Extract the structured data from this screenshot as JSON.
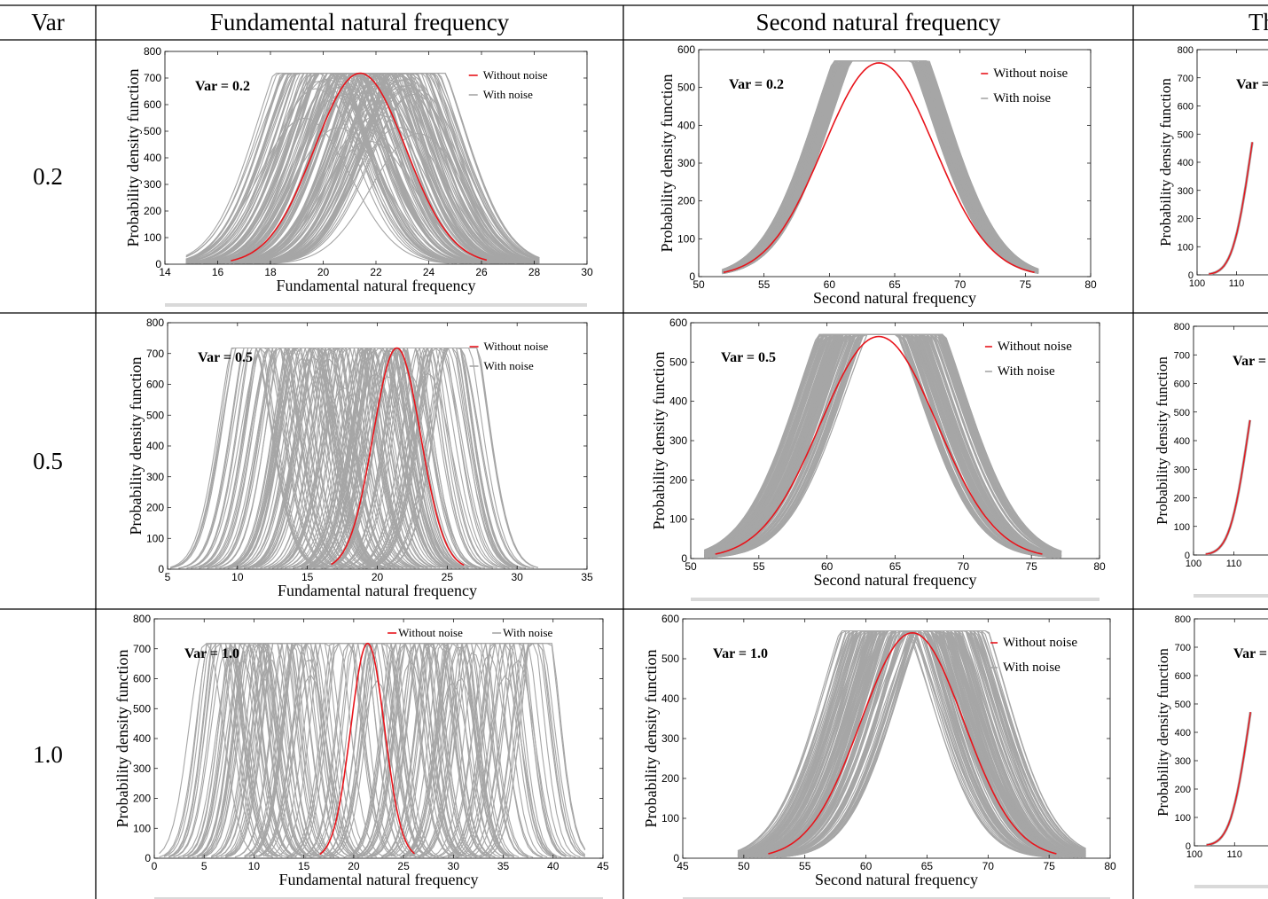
{
  "table": {
    "col_headers": [
      "Var",
      "Fundamental natural frequency",
      "Second natural frequency",
      "Th"
    ],
    "row_labels": [
      "0.2",
      "0.5",
      "1.0"
    ]
  },
  "colors": {
    "without_noise": "#e8141b",
    "with_noise": "#a6a6a6",
    "border": "#000000",
    "watermark": "#d9d9d9"
  },
  "chart_data": [
    {
      "id": "f1-0.2",
      "type": "line",
      "annotation": "Var = 0.2",
      "xlabel": "Fundamental natural frequency",
      "ylabel": "Probability density function",
      "xlim": [
        14,
        30
      ],
      "ylim": [
        0,
        800
      ],
      "xticks": [
        14,
        16,
        18,
        20,
        22,
        24,
        26,
        28,
        30
      ],
      "yticks": [
        0,
        100,
        200,
        300,
        400,
        500,
        600,
        700,
        800
      ],
      "series": [
        {
          "name": "Without noise",
          "peak_x": 21.4,
          "peak_y": 718,
          "x_range": [
            16.5,
            26.2
          ]
        },
        {
          "name": "With noise",
          "x_range": [
            14.8,
            28.2
          ],
          "peak_y": 718,
          "center_range": [
            19.2,
            23.6
          ],
          "min_peak_y": 300
        }
      ]
    },
    {
      "id": "f2-0.2",
      "type": "line",
      "annotation": "Var = 0.2",
      "xlabel": "Second natural frequency",
      "ylabel": "Probability density function",
      "xlim": [
        50,
        80
      ],
      "ylim": [
        0,
        600
      ],
      "xticks": [
        50,
        55,
        60,
        65,
        70,
        75,
        80
      ],
      "yticks": [
        0,
        100,
        200,
        300,
        400,
        500,
        600
      ],
      "series": [
        {
          "name": "Without noise",
          "peak_x": 63.8,
          "peak_y": 565,
          "x_range": [
            51.9,
            75.7
          ]
        },
        {
          "name": "With noise",
          "x_range": [
            51.8,
            76.0
          ],
          "peak_y": 570,
          "center_range": [
            63.3,
            64.6
          ],
          "min_peak_y": 545
        }
      ]
    },
    {
      "id": "f3-0.2",
      "type": "line",
      "annotation": "Var =",
      "ylabel": "Probability density function",
      "xlim": [
        100,
        140
      ],
      "ylim": [
        0,
        800
      ],
      "xticks": [
        100,
        110
      ],
      "yticks": [
        0,
        100,
        200,
        300,
        400,
        500,
        600,
        700,
        800
      ]
    },
    {
      "id": "f1-0.5",
      "type": "line",
      "annotation": "Var = 0.5",
      "xlabel": "Fundamental natural frequency",
      "ylabel": "Probability density function",
      "xlim": [
        5,
        35
      ],
      "ylim": [
        0,
        800
      ],
      "xticks": [
        5,
        10,
        15,
        20,
        25,
        30,
        35
      ],
      "yticks": [
        0,
        100,
        200,
        300,
        400,
        500,
        600,
        700,
        800
      ],
      "series": [
        {
          "name": "Without noise",
          "peak_x": 21.4,
          "peak_y": 718,
          "x_range": [
            16.7,
            26.2
          ]
        },
        {
          "name": "With noise",
          "x_range": [
            5.2,
            31.5
          ],
          "peak_y": 718,
          "center_range": [
            10.5,
            26.3
          ],
          "min_peak_y": 380
        }
      ]
    },
    {
      "id": "f2-0.5",
      "type": "line",
      "annotation": "Var = 0.5",
      "xlabel": "Second natural frequency",
      "ylabel": "Probability density function",
      "xlim": [
        50,
        80
      ],
      "ylim": [
        0,
        600
      ],
      "xticks": [
        50,
        55,
        60,
        65,
        70,
        75,
        80
      ],
      "yticks": [
        0,
        100,
        200,
        300,
        400,
        500,
        600
      ],
      "series": [
        {
          "name": "Without noise",
          "peak_x": 63.8,
          "peak_y": 565,
          "x_range": [
            51.8,
            75.8
          ]
        },
        {
          "name": "With noise",
          "x_range": [
            51.0,
            77.2
          ],
          "peak_y": 570,
          "center_range": [
            62.3,
            65.7
          ],
          "min_peak_y": 520
        }
      ]
    },
    {
      "id": "f3-0.5",
      "type": "line",
      "annotation": "Var =",
      "ylabel": "Probability density function",
      "xlim": [
        100,
        140
      ],
      "ylim": [
        0,
        800
      ],
      "xticks": [
        100,
        110
      ],
      "yticks": [
        0,
        100,
        200,
        300,
        400,
        500,
        600,
        700,
        800
      ]
    },
    {
      "id": "f1-1.0",
      "type": "line",
      "annotation": "Var = 1.0",
      "xlabel": "Fundamental natural frequency",
      "ylabel": "Probability density function",
      "xlim": [
        0,
        45
      ],
      "ylim": [
        0,
        800
      ],
      "xticks": [
        0,
        5,
        10,
        15,
        20,
        25,
        30,
        35,
        40,
        45
      ],
      "yticks": [
        0,
        100,
        200,
        300,
        400,
        500,
        600,
        700,
        800
      ],
      "series": [
        {
          "name": "Without noise",
          "peak_x": 21.4,
          "peak_y": 718,
          "x_range": [
            16.6,
            26.1
          ]
        },
        {
          "name": "With noise",
          "x_range": [
            0.5,
            43.2
          ],
          "peak_y": 718,
          "center_range": [
            5.0,
            39.0
          ],
          "min_peak_y": 380
        }
      ]
    },
    {
      "id": "f2-1.0",
      "type": "line",
      "annotation": "Var = 1.0",
      "xlabel": "Second natural frequency",
      "ylabel": "Probability density function",
      "xlim": [
        45,
        80
      ],
      "ylim": [
        0,
        600
      ],
      "xticks": [
        45,
        50,
        55,
        60,
        65,
        70,
        75,
        80
      ],
      "yticks": [
        0,
        100,
        200,
        300,
        400,
        500,
        600
      ],
      "series": [
        {
          "name": "Without noise",
          "peak_x": 63.8,
          "peak_y": 565,
          "x_range": [
            52.0,
            75.6
          ]
        },
        {
          "name": "With noise",
          "x_range": [
            49.5,
            78.0
          ],
          "peak_y": 570,
          "center_range": [
            60.8,
            67.0
          ],
          "min_peak_y": 440
        }
      ]
    },
    {
      "id": "f3-1.0",
      "type": "line",
      "annotation": "Var =",
      "ylabel": "Probability density function",
      "xlim": [
        100,
        140
      ],
      "ylim": [
        0,
        800
      ],
      "xticks": [
        100,
        110
      ],
      "yticks": [
        0,
        100,
        200,
        300,
        400,
        500,
        600,
        700,
        800
      ]
    }
  ]
}
